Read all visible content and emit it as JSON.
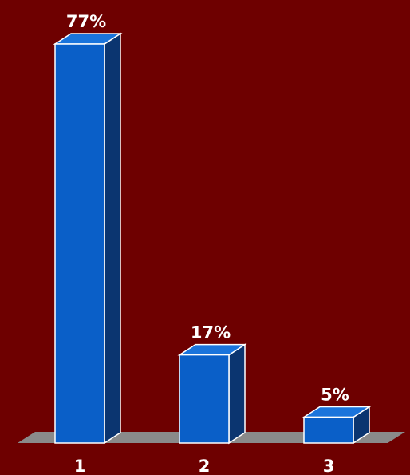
{
  "chart_data": {
    "type": "bar",
    "categories": [
      "1",
      "2",
      "3"
    ],
    "values": [
      77,
      17,
      5
    ],
    "data_labels": [
      "77%",
      "17%",
      "5%"
    ],
    "title": "",
    "xlabel": "",
    "ylabel": "",
    "ylim": [
      0,
      77
    ],
    "grid": false,
    "style": "3d",
    "colors": {
      "background": "#6e0000",
      "bar_front": "#0a5fc8",
      "bar_top": "#1a74dc",
      "bar_side": "#0b3570",
      "bar_outline": "#ffffff",
      "floor": "#8a8a8a",
      "label": "#ffffff"
    }
  }
}
